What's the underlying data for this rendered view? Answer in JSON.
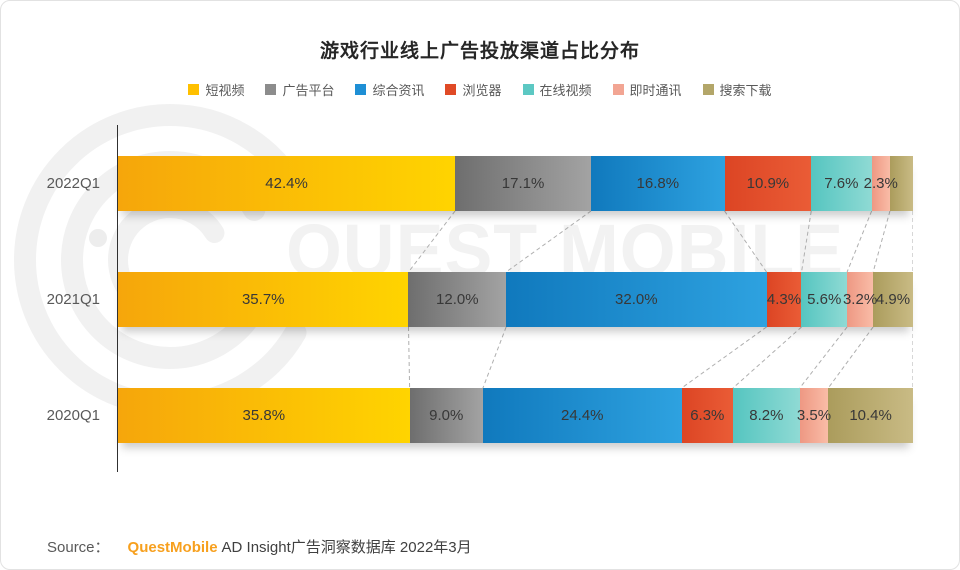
{
  "title": "游戏行业线上广告投放渠道占比分布",
  "chart_data": {
    "type": "bar",
    "subtype": "horizontal-stacked",
    "title": "游戏行业线上广告投放渠道占比分布",
    "categories": [
      "2022Q1",
      "2021Q1",
      "2020Q1"
    ],
    "series": [
      {
        "name": "短视频",
        "legend_color": "#FFC000",
        "gradient": [
          "#F6A60B",
          "#FFD400"
        ],
        "values": [
          42.4,
          35.7,
          35.8
        ],
        "labels": [
          "42.4%",
          "35.7%",
          "35.8%"
        ]
      },
      {
        "name": "广告平台",
        "legend_color": "#8C8C8C",
        "gradient": [
          "#6E6E6E",
          "#A3A3A3"
        ],
        "values": [
          17.1,
          12.0,
          9.0
        ],
        "labels": [
          "17.1%",
          "12.0%",
          "9.0%"
        ]
      },
      {
        "name": "综合资讯",
        "legend_color": "#1E8FD5",
        "gradient": [
          "#1079BD",
          "#2EA2E0"
        ],
        "values": [
          16.8,
          32.0,
          24.4
        ],
        "labels": [
          "16.8%",
          "32.0%",
          "24.4%"
        ]
      },
      {
        "name": "浏览器",
        "legend_color": "#E04A26",
        "gradient": [
          "#DC4524",
          "#EA5C36"
        ],
        "values": [
          10.9,
          4.3,
          6.3
        ],
        "labels": [
          "10.9%",
          "4.3%",
          "6.3%"
        ]
      },
      {
        "name": "在线视频",
        "legend_color": "#5CC8C3",
        "gradient": [
          "#55C5C0",
          "#8FDAD4"
        ],
        "values": [
          7.6,
          5.6,
          8.2
        ],
        "labels": [
          "7.6%",
          "5.6%",
          "8.2%"
        ]
      },
      {
        "name": "即时通讯",
        "legend_color": "#F2A593",
        "gradient": [
          "#EE9883",
          "#F9BCA7"
        ],
        "values": [
          2.3,
          3.2,
          3.5
        ],
        "labels": [
          "2.3%",
          "3.2%",
          "3.5%"
        ]
      },
      {
        "name": "搜索下载",
        "legend_color": "#B3A669",
        "gradient": [
          "#AB9C5C",
          "#C9BB85"
        ],
        "values": [
          2.9,
          4.9,
          10.4
        ],
        "labels": [
          "",
          "4.9%",
          "10.4%"
        ]
      }
    ],
    "legend_position": "top",
    "grid": false,
    "rows_normalized_to_full_width": true,
    "boundary_connectors": "dashed"
  },
  "watermark": {
    "text": "QUEST MOBILE"
  },
  "source": {
    "label": "Source：",
    "brand": "QuestMobile",
    "text": "AD Insight广告洞察数据库 2022年3月"
  },
  "colors": {
    "title_text": "#262626",
    "legend_text": "#595959",
    "category_text": "#595959",
    "value_label_text": "#383838",
    "axis": "#303030",
    "connector": "#AFAFAF",
    "brand_orange": "#F7A01E",
    "watermark": "#F2F2F2"
  }
}
